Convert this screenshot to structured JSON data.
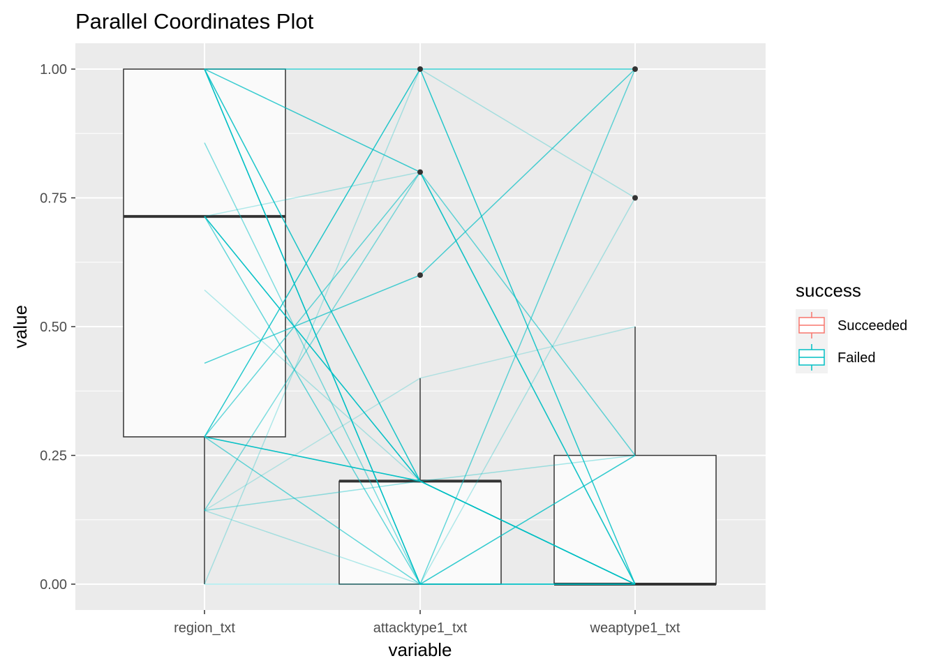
{
  "chart_data": {
    "type": "parallel-coordinates",
    "title": "Parallel Coordinates Plot",
    "xlabel": "variable",
    "ylabel": "value",
    "categories": [
      "region_txt",
      "attacktype1_txt",
      "weaptype1_txt"
    ],
    "yticks": [
      "0.00",
      "0.25",
      "0.50",
      "0.75",
      "1.00"
    ],
    "ylim": [
      -0.05,
      1.05
    ],
    "grid": true,
    "legend": {
      "title": "success",
      "position": "right",
      "entries": [
        {
          "name": "Succeeded",
          "color": "#F8766D"
        },
        {
          "name": "Failed",
          "color": "#00BFC4"
        }
      ]
    },
    "boxplots": [
      {
        "variable": "region_txt",
        "whisker_low": 0.0,
        "q1": 0.286,
        "median": 0.714,
        "q3": 1.0,
        "whisker_high": 1.0,
        "outliers": []
      },
      {
        "variable": "attacktype1_txt",
        "whisker_low": 0.0,
        "q1": 0.0,
        "median": 0.2,
        "q3": 0.2,
        "whisker_high": 0.4,
        "outliers": [
          0.6,
          0.8,
          1.0
        ]
      },
      {
        "variable": "weaptype1_txt",
        "whisker_low": 0.0,
        "q1": 0.0,
        "median": 0.0,
        "q3": 0.25,
        "whisker_high": 0.5,
        "outliers": [
          0.75,
          1.0
        ]
      }
    ],
    "lines": [
      {
        "values": [
          1.0,
          1.0,
          1.0
        ],
        "alpha": 0.8
      },
      {
        "values": [
          1.0,
          0.8,
          0.25
        ],
        "alpha": 0.6
      },
      {
        "values": [
          1.0,
          0.2,
          0.0
        ],
        "alpha": 0.8
      },
      {
        "values": [
          1.0,
          0.0,
          0.0
        ],
        "alpha": 0.9
      },
      {
        "values": [
          1.0,
          0.0,
          0.0
        ],
        "alpha": 0.9
      },
      {
        "values": [
          1.0,
          0.2,
          0.25
        ],
        "alpha": 0.35
      },
      {
        "values": [
          0.857,
          0.0,
          0.25
        ],
        "alpha": 0.5
      },
      {
        "values": [
          0.714,
          0.8,
          0.0
        ],
        "alpha": 0.3
      },
      {
        "values": [
          0.714,
          0.2,
          0.0
        ],
        "alpha": 0.8
      },
      {
        "values": [
          0.714,
          0.2,
          0.0
        ],
        "alpha": 0.8
      },
      {
        "values": [
          0.714,
          0.0,
          1.0
        ],
        "alpha": 0.6
      },
      {
        "values": [
          0.571,
          0.2,
          0.0
        ],
        "alpha": 0.3
      },
      {
        "values": [
          0.429,
          0.6,
          1.0
        ],
        "alpha": 0.7
      },
      {
        "values": [
          0.286,
          1.0,
          0.0
        ],
        "alpha": 0.85
      },
      {
        "values": [
          0.286,
          0.8,
          0.0
        ],
        "alpha": 0.6
      },
      {
        "values": [
          0.286,
          0.2,
          0.0
        ],
        "alpha": 0.8
      },
      {
        "values": [
          0.286,
          0.2,
          0.0
        ],
        "alpha": 0.8
      },
      {
        "values": [
          0.286,
          0.0,
          0.25
        ],
        "alpha": 0.6
      },
      {
        "values": [
          0.143,
          0.8,
          0.0
        ],
        "alpha": 0.5
      },
      {
        "values": [
          0.143,
          0.2,
          0.0
        ],
        "alpha": 0.4
      },
      {
        "values": [
          0.143,
          0.0,
          0.75
        ],
        "alpha": 0.3
      },
      {
        "values": [
          0.143,
          0.4,
          0.5
        ],
        "alpha": 0.25
      },
      {
        "values": [
          0.0,
          0.0,
          0.0
        ],
        "alpha": 0.35
      },
      {
        "values": [
          0.0,
          1.0,
          0.75
        ],
        "alpha": 0.3
      },
      {
        "values": [
          1.0,
          0.8,
          0.0
        ],
        "alpha": 0.4
      }
    ]
  }
}
